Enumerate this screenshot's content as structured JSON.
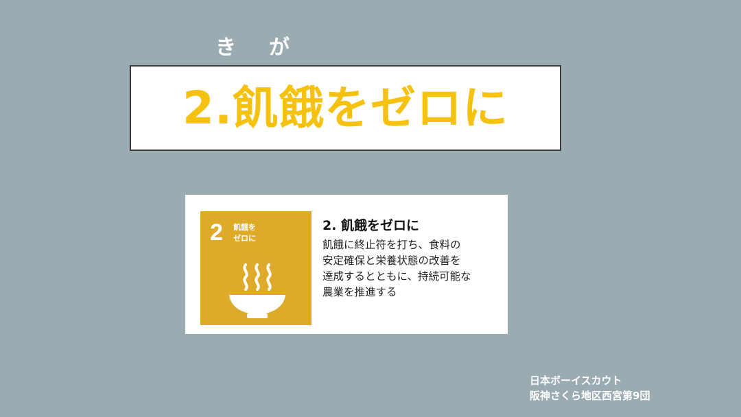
{
  "ruby": {
    "ki": "き",
    "ga": "が"
  },
  "title": "2.飢餓をゼロに",
  "card": {
    "tile": {
      "number": "2",
      "label_line1": "飢餓を",
      "label_line2": "ゼロに",
      "icon": "rice-bowl-icon",
      "color": "#deaa2a"
    },
    "heading": "2. 飢餓をゼロに",
    "description_lines": [
      "飢餓に終止符を打ち、食料の",
      "安定確保と栄養状態の改善を",
      "達成するとともに、持続可能な",
      "農業を推進する"
    ]
  },
  "organization": {
    "line1": "日本ボーイスカウト",
    "line2": "阪神さくら地区西宮第9団"
  },
  "colors": {
    "background": "#9aabb1",
    "title_text": "#f5c211"
  }
}
